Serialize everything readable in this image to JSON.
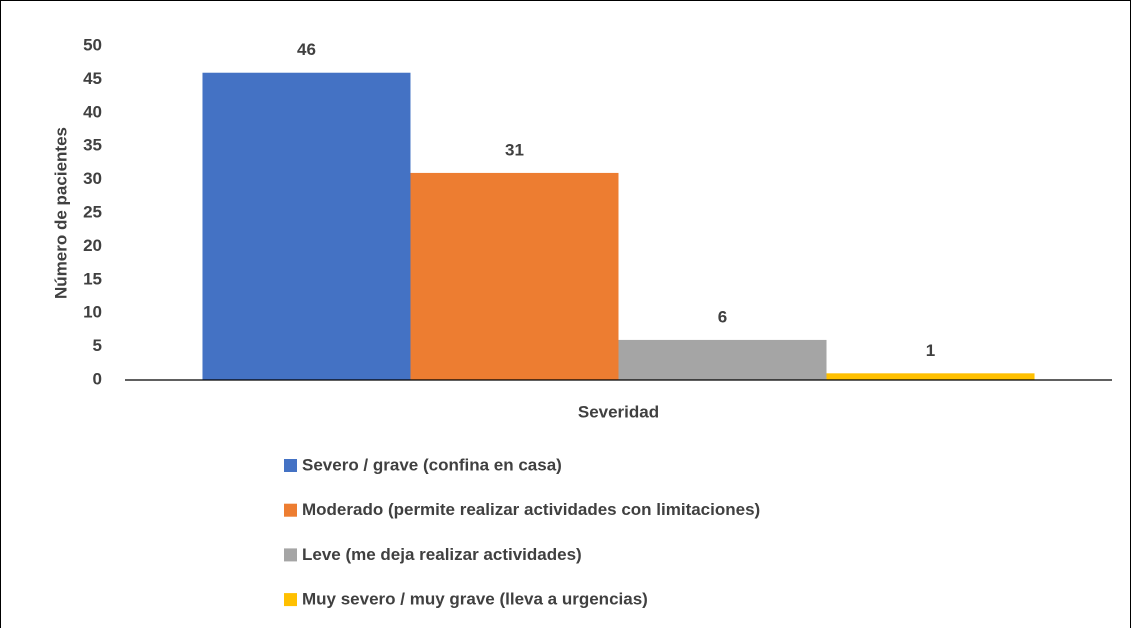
{
  "chart_data": {
    "type": "bar",
    "y_label": "Número de pacientes",
    "categories": [
      "Severidad"
    ],
    "series": [
      {
        "name": "Severo / grave (confina en casa)",
        "color": "#4472c4",
        "values": [
          46
        ]
      },
      {
        "name": "Moderado (permite realizar actividades con limitaciones)",
        "color": "#ed7d31",
        "values": [
          31
        ]
      },
      {
        "name": "Leve (me deja realizar actividades)",
        "color": "#a5a5a5",
        "values": [
          6
        ]
      },
      {
        "name": "Muy severo / muy grave (lleva a urgencias)",
        "color": "#ffc000",
        "values": [
          1
        ]
      }
    ],
    "ylim": [
      0,
      50
    ],
    "yticks": [
      0,
      5,
      10,
      15,
      20,
      25,
      30,
      35,
      40,
      45,
      50
    ],
    "grid": false,
    "legend": "bottom"
  }
}
